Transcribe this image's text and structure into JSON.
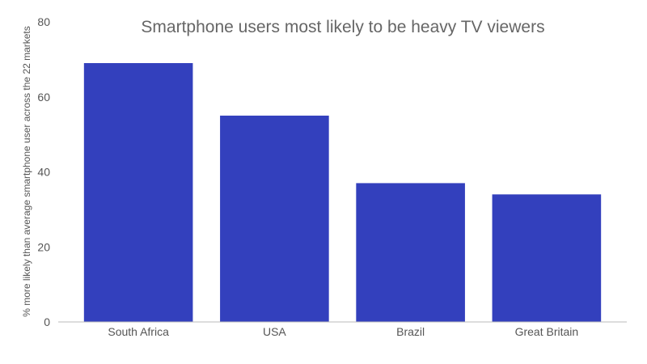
{
  "chart_data": {
    "type": "bar",
    "title": "Smartphone users most likely to be heavy TV viewers",
    "xlabel": "",
    "ylabel": "% more likely than average smartphone user across the 22 markets",
    "categories": [
      "South Africa",
      "USA",
      "Brazil",
      "Great Britain"
    ],
    "values": [
      69,
      55,
      37,
      34
    ],
    "ylim": [
      0,
      80
    ],
    "yticks": [
      "0",
      "20",
      "40",
      "60",
      "80"
    ],
    "grid": false,
    "legend": "none",
    "bar_color": "#3340bd",
    "axis_color": "#bbbbbb"
  }
}
